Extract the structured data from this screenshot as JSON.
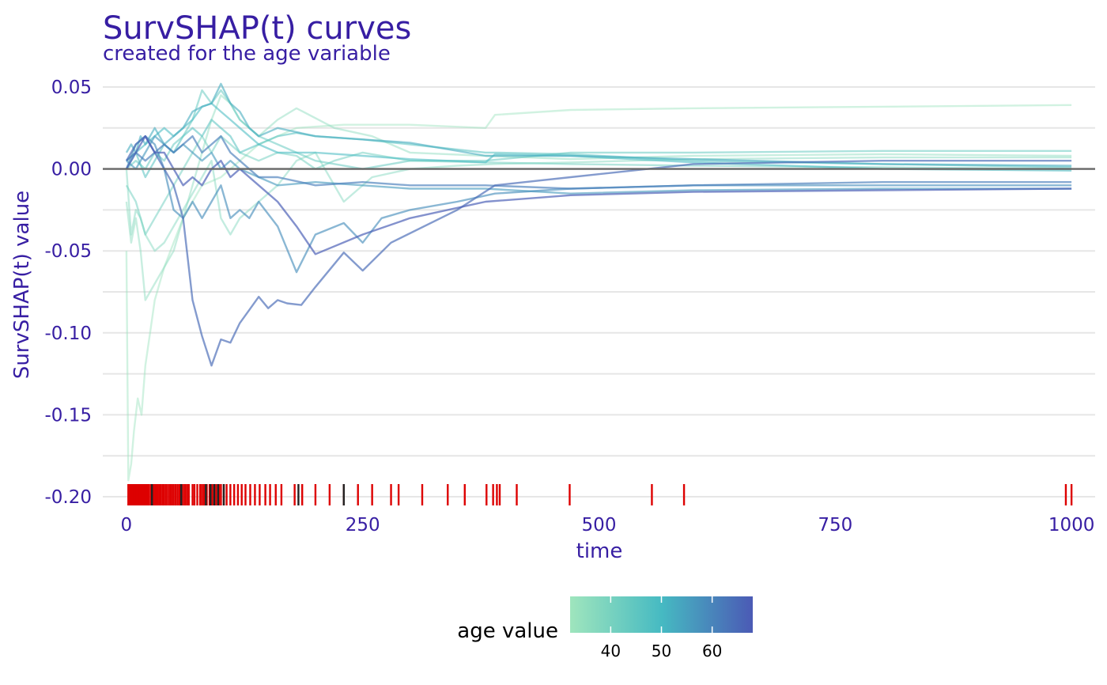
{
  "chart_data": {
    "type": "line",
    "title": "SurvSHAP(t) curves",
    "subtitle": "created for the age variable",
    "xlabel": "time",
    "ylabel": "SurvSHAP(t) value",
    "xlim": [
      -25,
      1025
    ],
    "ylim": [
      -0.2,
      0.052
    ],
    "x_ticks": [
      0,
      250,
      500,
      750,
      1000
    ],
    "x_tick_labels": [
      "0",
      "250",
      "500",
      "750",
      "1000"
    ],
    "y_ticks": [
      0.05,
      0.0,
      -0.05,
      -0.1,
      -0.15,
      -0.2
    ],
    "y_tick_labels": [
      "0.05",
      "0.00",
      "-0.05",
      "-0.10",
      "-0.15",
      "-0.20"
    ],
    "grid": true,
    "zero_line": 0.0,
    "colors": {
      "title": "#371ea3",
      "grid": "#e6e6e6",
      "zero_line": "#666666",
      "rug_event": "#dd0000",
      "rug_censored": "#222222",
      "low": "#9fe5bd",
      "mid": "#46bac2",
      "high": "#4b5ab5"
    },
    "legend": {
      "title": "age value",
      "position": "bottom",
      "range": [
        32,
        68
      ],
      "ticks": [
        40,
        50,
        60
      ],
      "tick_labels": [
        "40",
        "50",
        "60"
      ]
    },
    "series": [
      {
        "age": 33,
        "x": [
          0,
          2,
          5,
          8,
          12,
          16,
          20,
          25,
          30,
          40,
          50,
          60,
          70,
          80,
          100,
          120,
          140,
          180,
          230,
          300,
          380,
          390,
          470,
          600,
          800,
          1000
        ],
        "y": [
          -0.05,
          -0.19,
          -0.18,
          -0.16,
          -0.14,
          -0.15,
          -0.12,
          -0.1,
          -0.08,
          -0.06,
          -0.045,
          -0.03,
          -0.02,
          -0.01,
          -0.005,
          0.005,
          0.015,
          0.025,
          0.027,
          0.027,
          0.025,
          0.033,
          0.036,
          0.037,
          0.038,
          0.039
        ]
      },
      {
        "age": 36,
        "x": [
          0,
          5,
          10,
          15,
          20,
          30,
          40,
          50,
          60,
          70,
          80,
          90,
          100,
          110,
          120,
          140,
          160,
          180,
          220,
          260,
          300,
          380,
          470,
          600,
          800,
          1000
        ],
        "y": [
          -0.02,
          -0.045,
          -0.03,
          -0.05,
          -0.08,
          -0.07,
          -0.06,
          -0.05,
          -0.03,
          -0.01,
          0.01,
          0.03,
          0.045,
          0.04,
          0.03,
          0.02,
          0.03,
          0.037,
          0.025,
          0.02,
          0.01,
          0.008,
          0.006,
          0.008,
          0.009,
          0.008
        ]
      },
      {
        "age": 38,
        "x": [
          0,
          5,
          10,
          15,
          20,
          30,
          40,
          50,
          60,
          70,
          80,
          90,
          100,
          110,
          120,
          140,
          160,
          180,
          200,
          230,
          260,
          300,
          350,
          390,
          470,
          600,
          800,
          1000
        ],
        "y": [
          0.0,
          -0.04,
          -0.025,
          -0.03,
          -0.04,
          -0.05,
          -0.045,
          -0.035,
          -0.025,
          -0.015,
          -0.005,
          0.005,
          -0.03,
          -0.04,
          -0.03,
          -0.02,
          -0.01,
          0.005,
          0.01,
          -0.02,
          -0.005,
          0.0,
          0.002,
          0.003,
          0.004,
          0.006,
          0.007,
          0.007
        ]
      },
      {
        "age": 42,
        "x": [
          0,
          10,
          20,
          30,
          40,
          50,
          60,
          70,
          80,
          90,
          100,
          120,
          140,
          160,
          180,
          200,
          220,
          250,
          300,
          380,
          470,
          600,
          800,
          1000
        ],
        "y": [
          -0.01,
          -0.02,
          -0.04,
          -0.03,
          -0.02,
          -0.01,
          0.0,
          0.01,
          0.02,
          0.01,
          0.02,
          0.01,
          0.005,
          0.01,
          0.008,
          0.0,
          0.005,
          0.01,
          0.005,
          0.004,
          0.003,
          0.002,
          0.001,
          0.0
        ]
      },
      {
        "age": 45,
        "x": [
          0,
          10,
          20,
          30,
          40,
          50,
          60,
          70,
          80,
          90,
          100,
          110,
          120,
          140,
          160,
          180,
          200,
          250,
          300,
          380,
          470,
          600,
          800,
          1000
        ],
        "y": [
          0.0,
          0.005,
          0.0,
          0.01,
          0.005,
          0.015,
          0.02,
          0.03,
          0.048,
          0.04,
          0.048,
          0.04,
          0.03,
          0.02,
          0.015,
          0.01,
          0.005,
          0.0,
          0.005,
          0.005,
          0.01,
          0.01,
          0.011,
          0.011
        ]
      },
      {
        "age": 48,
        "x": [
          0,
          10,
          20,
          30,
          40,
          50,
          60,
          70,
          80,
          90,
          100,
          110,
          120,
          140,
          160,
          180,
          200,
          250,
          300,
          380,
          390,
          470,
          600,
          800,
          1000
        ],
        "y": [
          0.0,
          0.01,
          -0.005,
          0.005,
          0.015,
          0.01,
          0.02,
          0.025,
          0.02,
          0.03,
          0.025,
          0.02,
          0.01,
          0.015,
          0.02,
          0.022,
          0.02,
          0.018,
          0.015,
          0.01,
          0.01,
          0.009,
          0.005,
          0.003,
          0.001
        ]
      },
      {
        "age": 51,
        "x": [
          0,
          10,
          20,
          30,
          40,
          50,
          60,
          70,
          80,
          90,
          100,
          110,
          120,
          140,
          160,
          200,
          250,
          300,
          380,
          390,
          470,
          600,
          800,
          1000
        ],
        "y": [
          0.005,
          0.01,
          0.015,
          0.02,
          0.025,
          0.02,
          0.025,
          0.03,
          0.038,
          0.04,
          0.035,
          0.03,
          0.025,
          0.015,
          0.01,
          0.01,
          0.008,
          0.006,
          0.004,
          0.009,
          0.008,
          0.004,
          0.0,
          -0.001
        ]
      },
      {
        "age": 54,
        "x": [
          0,
          5,
          10,
          15,
          20,
          25,
          30,
          40,
          50,
          60,
          70,
          80,
          90,
          100,
          110,
          120,
          130,
          140,
          160,
          200,
          250,
          300,
          380,
          470,
          600,
          800,
          1000
        ],
        "y": [
          0.01,
          0.015,
          0.01,
          0.02,
          0.015,
          0.02,
          0.025,
          0.015,
          0.02,
          0.025,
          0.035,
          0.038,
          0.04,
          0.052,
          0.04,
          0.035,
          0.025,
          0.02,
          0.025,
          0.02,
          0.018,
          0.016,
          0.008,
          0.008,
          0.006,
          0.003,
          0.002
        ]
      },
      {
        "age": 57,
        "x": [
          0,
          10,
          20,
          30,
          40,
          50,
          60,
          70,
          80,
          90,
          100,
          110,
          120,
          140,
          160,
          200,
          250,
          300,
          380,
          470,
          600,
          800,
          1000
        ],
        "y": [
          0.005,
          0.0,
          0.01,
          0.02,
          0.015,
          0.01,
          0.015,
          0.01,
          0.005,
          0.01,
          0.0,
          0.005,
          0.0,
          -0.005,
          -0.01,
          -0.008,
          -0.01,
          -0.012,
          -0.012,
          -0.015,
          -0.013,
          -0.012,
          -0.012
        ]
      },
      {
        "age": 59,
        "x": [
          0,
          10,
          20,
          30,
          40,
          50,
          60,
          70,
          80,
          90,
          100,
          110,
          120,
          130,
          140,
          160,
          180,
          200,
          230,
          250,
          270,
          300,
          350,
          390,
          470,
          600,
          800,
          1000
        ],
        "y": [
          0.0,
          0.015,
          0.02,
          0.015,
          0.0,
          -0.025,
          -0.03,
          -0.02,
          -0.03,
          -0.02,
          -0.01,
          -0.03,
          -0.025,
          -0.03,
          -0.02,
          -0.035,
          -0.063,
          -0.04,
          -0.033,
          -0.045,
          -0.03,
          -0.025,
          -0.02,
          -0.015,
          -0.012,
          -0.01,
          -0.01,
          -0.01
        ]
      },
      {
        "age": 62,
        "x": [
          0,
          10,
          20,
          30,
          40,
          50,
          60,
          70,
          80,
          90,
          100,
          110,
          120,
          140,
          160,
          200,
          250,
          300,
          380,
          470,
          600,
          800,
          1000
        ],
        "y": [
          0.005,
          0.01,
          0.005,
          0.01,
          0.015,
          0.01,
          0.015,
          0.02,
          0.01,
          0.015,
          0.02,
          0.01,
          0.005,
          -0.005,
          -0.005,
          -0.01,
          -0.008,
          -0.01,
          -0.01,
          -0.012,
          -0.01,
          -0.008,
          -0.008
        ]
      },
      {
        "age": 65,
        "x": [
          0,
          10,
          20,
          30,
          40,
          50,
          60,
          70,
          80,
          90,
          100,
          110,
          120,
          130,
          140,
          150,
          160,
          170,
          185,
          200,
          230,
          250,
          280,
          350,
          390,
          470,
          600,
          800,
          1000
        ],
        "y": [
          0.005,
          0.015,
          0.02,
          0.01,
          0.0,
          -0.01,
          -0.03,
          -0.08,
          -0.102,
          -0.12,
          -0.104,
          -0.106,
          -0.094,
          -0.086,
          -0.078,
          -0.085,
          -0.08,
          -0.082,
          -0.083,
          -0.072,
          -0.051,
          -0.062,
          -0.045,
          -0.025,
          -0.01,
          -0.005,
          0.003,
          0.005,
          0.005
        ]
      },
      {
        "age": 67,
        "x": [
          0,
          10,
          20,
          30,
          40,
          50,
          60,
          70,
          80,
          90,
          100,
          110,
          120,
          140,
          160,
          180,
          200,
          250,
          300,
          380,
          470,
          600,
          800,
          1000
        ],
        "y": [
          0.0,
          0.01,
          0.02,
          0.01,
          0.01,
          0.0,
          -0.01,
          -0.005,
          -0.01,
          0.0,
          0.005,
          -0.005,
          0.0,
          -0.01,
          -0.02,
          -0.035,
          -0.052,
          -0.04,
          -0.03,
          -0.02,
          -0.016,
          -0.014,
          -0.013,
          -0.012
        ]
      }
    ],
    "rug": {
      "event_times": [
        2,
        4,
        5,
        6,
        7,
        8,
        9,
        10,
        11,
        12,
        13,
        14,
        15,
        16,
        17,
        18,
        19,
        20,
        21,
        22,
        23,
        24,
        26,
        28,
        29,
        30,
        31,
        32,
        33,
        35,
        36,
        38,
        40,
        42,
        44,
        46,
        48,
        50,
        52,
        54,
        56,
        60,
        62,
        64,
        66,
        70,
        72,
        75,
        78,
        80,
        82,
        85,
        88,
        91,
        93,
        95,
        98,
        100,
        103,
        106,
        110,
        114,
        118,
        122,
        126,
        131,
        136,
        141,
        147,
        152,
        158,
        164,
        178,
        186,
        200,
        215,
        230,
        245,
        260,
        280,
        288,
        313,
        340,
        358,
        381,
        388,
        392,
        395,
        413,
        469,
        556,
        590,
        994,
        1000
      ],
      "censored_times": [
        27,
        58,
        84,
        89,
        93,
        97,
        103,
        182,
        230
      ]
    }
  }
}
